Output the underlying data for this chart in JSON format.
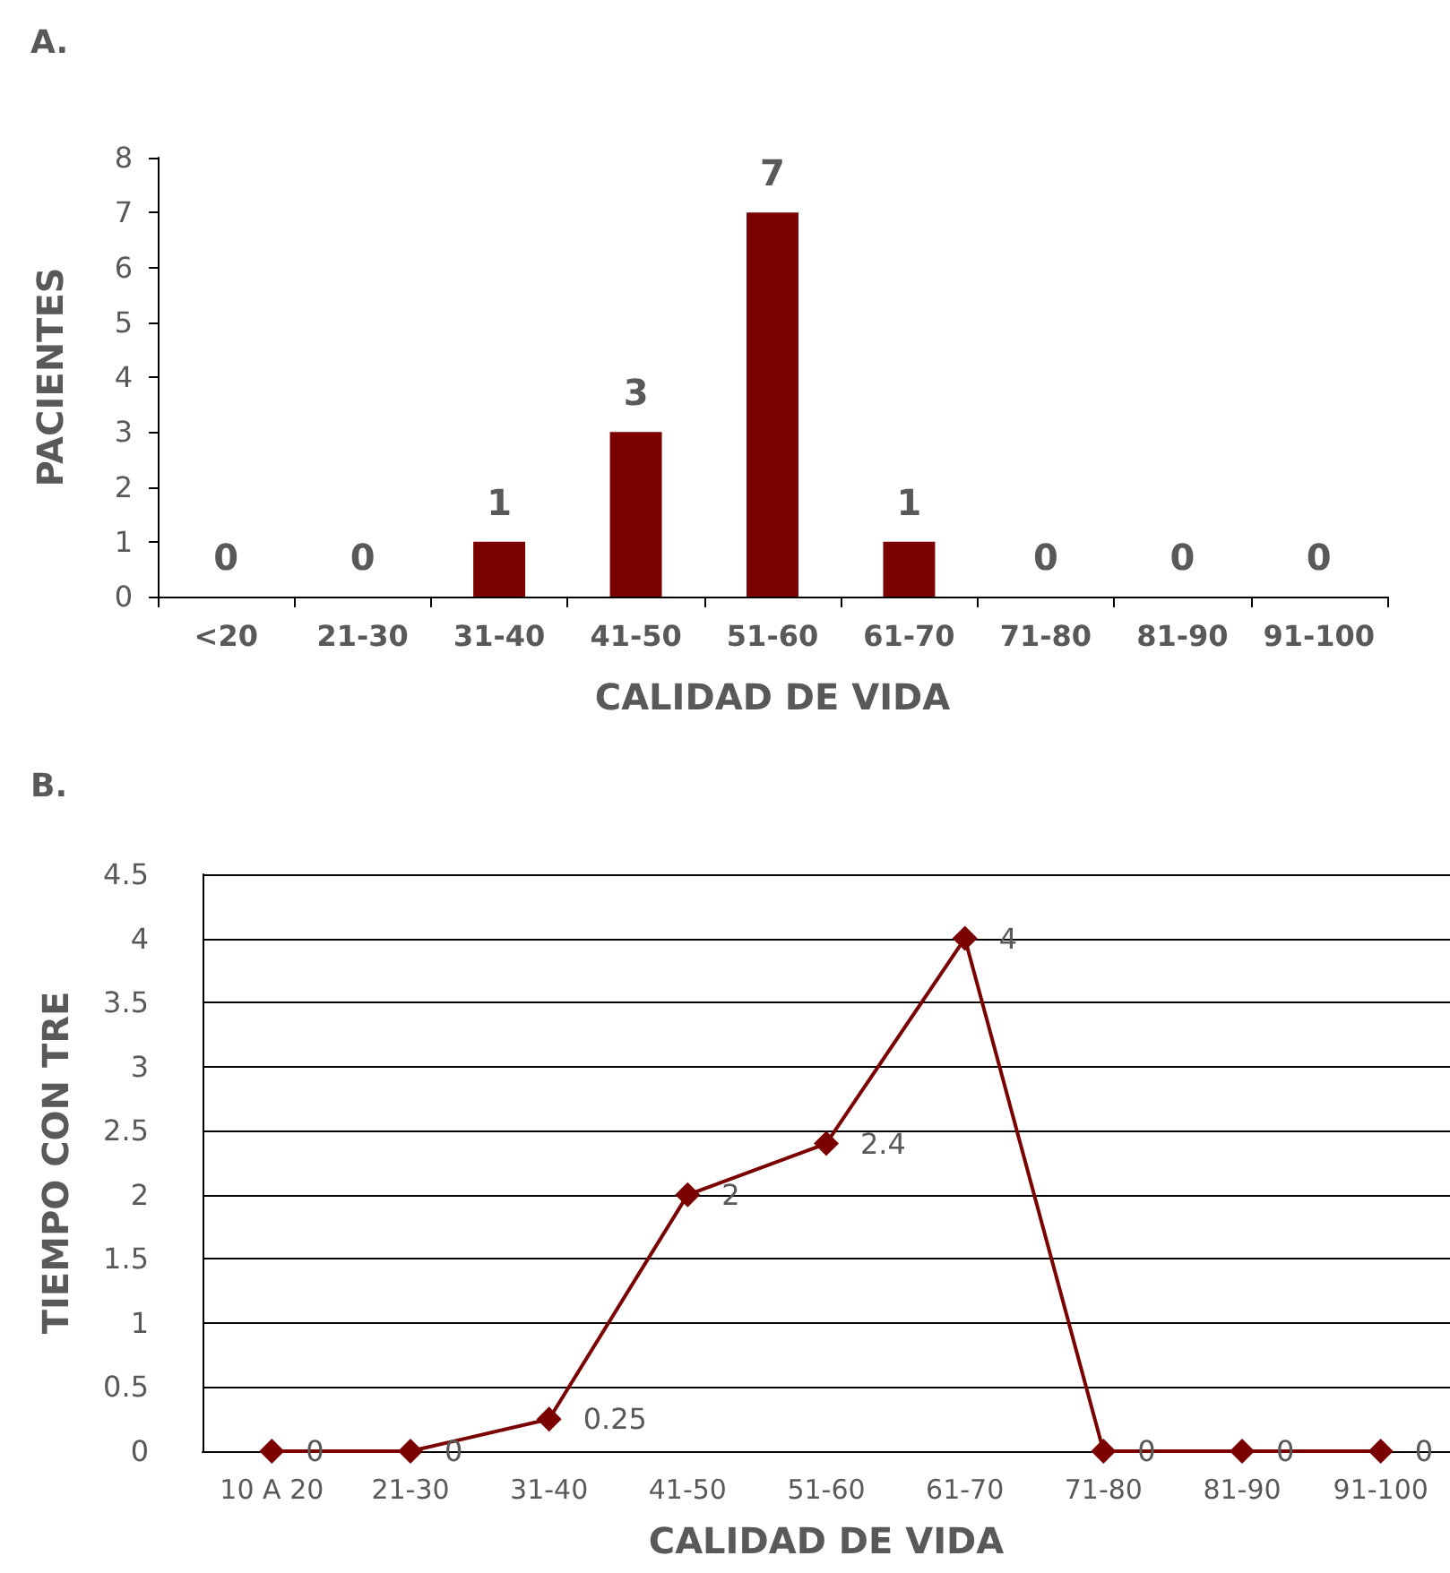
{
  "chart_data": [
    {
      "type": "bar",
      "title": "A.",
      "xlabel": "CALIDAD DE VIDA",
      "ylabel": "PACIENTES",
      "categories": [
        "<20",
        "21-30",
        "31-40",
        "41-50",
        "51-60",
        "61-70",
        "71-80",
        "81-90",
        "91-100"
      ],
      "values": [
        0,
        0,
        1,
        3,
        7,
        1,
        0,
        0,
        0
      ],
      "color": "#7b0000",
      "ylim": [
        0,
        8
      ],
      "yticks": [
        0,
        1,
        2,
        3,
        4,
        5,
        6,
        7,
        8
      ],
      "grid": false,
      "data_labels": true
    },
    {
      "type": "line",
      "title": "B.",
      "xlabel": "CALIDAD DE VIDA",
      "ylabel": "TIEMPO CON TRE",
      "categories": [
        "10 A 20",
        "21-30",
        "31-40",
        "41-50",
        "51-60",
        "61-70",
        "71-80",
        "81-90",
        "91-100"
      ],
      "values": [
        0,
        0,
        0.25,
        2,
        2.4,
        4,
        0,
        0,
        0
      ],
      "color": "#7b0000",
      "ylim": [
        0,
        4.5
      ],
      "yticks": [
        0,
        0.5,
        1,
        1.5,
        2,
        2.5,
        3,
        3.5,
        4,
        4.5
      ],
      "grid": "y",
      "marker": "diamond",
      "data_labels": true
    }
  ]
}
